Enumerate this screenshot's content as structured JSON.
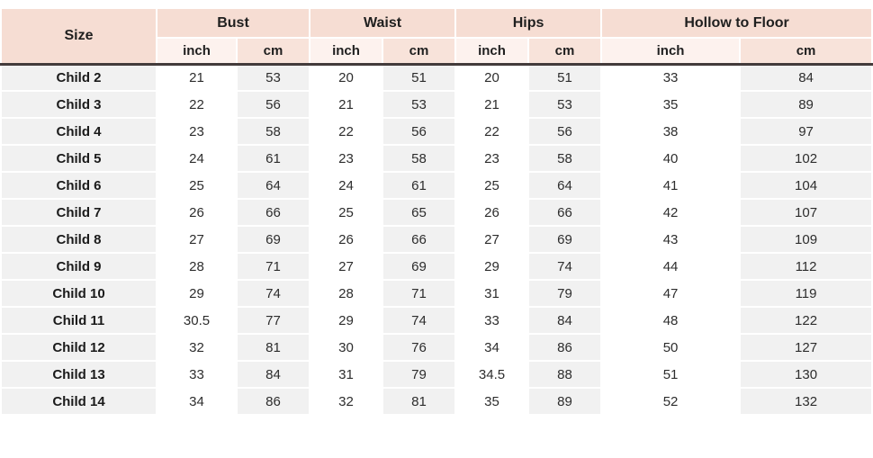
{
  "colors": {
    "header_peach": "#f6ddd3",
    "unit_inch_bg": "#fdf2ee",
    "unit_cm_bg": "#f8e3da",
    "body_gray_cell": "#f1f1f1",
    "body_white_cell": "#ffffff",
    "divider_dark": "#433b3b",
    "text_dark": "#1f1f1f"
  },
  "chart_data": {
    "type": "table",
    "corner_label": "Size",
    "column_groups": [
      "Bust",
      "Waist",
      "Hips",
      "Hollow to Floor"
    ],
    "unit_headers": [
      "inch",
      "cm",
      "inch",
      "cm",
      "inch",
      "cm",
      "inch",
      "cm"
    ],
    "rows": [
      {
        "size": "Child 2",
        "values": [
          "21",
          "53",
          "20",
          "51",
          "20",
          "51",
          "33",
          "84"
        ]
      },
      {
        "size": "Child 3",
        "values": [
          "22",
          "56",
          "21",
          "53",
          "21",
          "53",
          "35",
          "89"
        ]
      },
      {
        "size": "Child 4",
        "values": [
          "23",
          "58",
          "22",
          "56",
          "22",
          "56",
          "38",
          "97"
        ]
      },
      {
        "size": "Child 5",
        "values": [
          "24",
          "61",
          "23",
          "58",
          "23",
          "58",
          "40",
          "102"
        ]
      },
      {
        "size": "Child 6",
        "values": [
          "25",
          "64",
          "24",
          "61",
          "25",
          "64",
          "41",
          "104"
        ]
      },
      {
        "size": "Child 7",
        "values": [
          "26",
          "66",
          "25",
          "65",
          "26",
          "66",
          "42",
          "107"
        ]
      },
      {
        "size": "Child 8",
        "values": [
          "27",
          "69",
          "26",
          "66",
          "27",
          "69",
          "43",
          "109"
        ]
      },
      {
        "size": "Child 9",
        "values": [
          "28",
          "71",
          "27",
          "69",
          "29",
          "74",
          "44",
          "112"
        ]
      },
      {
        "size": "Child 10",
        "values": [
          "29",
          "74",
          "28",
          "71",
          "31",
          "79",
          "47",
          "119"
        ]
      },
      {
        "size": "Child 11",
        "values": [
          "30.5",
          "77",
          "29",
          "74",
          "33",
          "84",
          "48",
          "122"
        ]
      },
      {
        "size": "Child 12",
        "values": [
          "32",
          "81",
          "30",
          "76",
          "34",
          "86",
          "50",
          "127"
        ]
      },
      {
        "size": "Child 13",
        "values": [
          "33",
          "84",
          "31",
          "79",
          "34.5",
          "88",
          "51",
          "130"
        ]
      },
      {
        "size": "Child 14",
        "values": [
          "34",
          "86",
          "32",
          "81",
          "35",
          "89",
          "52",
          "132"
        ]
      }
    ]
  }
}
